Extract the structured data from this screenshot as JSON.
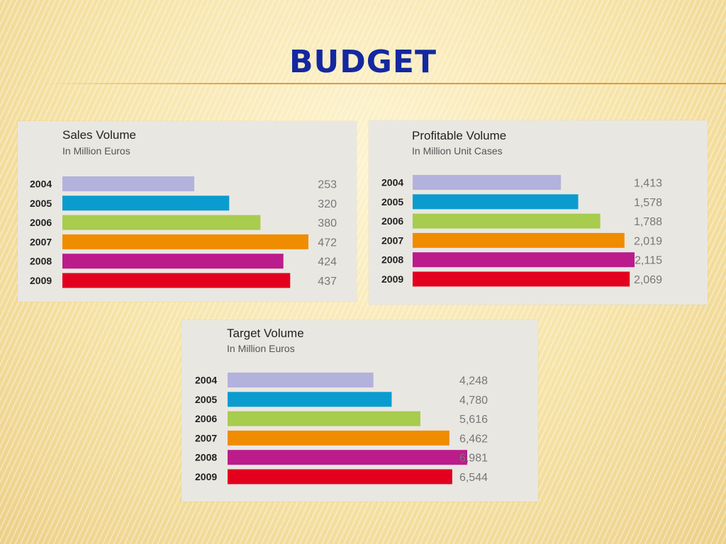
{
  "slide": {
    "title": "BUDGET"
  },
  "chart_data": [
    {
      "type": "bar",
      "orientation": "horizontal",
      "title": "Sales Volume",
      "subtitle": "In Million Euros",
      "categories": [
        "2004",
        "2005",
        "2006",
        "2007",
        "2008",
        "2009"
      ],
      "values": [
        253,
        320,
        380,
        472,
        424,
        437
      ],
      "value_labels": [
        "253",
        "320",
        "380",
        "472",
        "424",
        "437"
      ],
      "colors": [
        "#b3b2dc",
        "#0a9ccf",
        "#a8cc4e",
        "#f08c00",
        "#bc1b8c",
        "#e3001f"
      ],
      "xlim": [
        0,
        472
      ]
    },
    {
      "type": "bar",
      "orientation": "horizontal",
      "title": "Profitable Volume",
      "subtitle": "In Million Unit Cases",
      "categories": [
        "2004",
        "2005",
        "2006",
        "2007",
        "2008",
        "2009"
      ],
      "values": [
        1413,
        1578,
        1788,
        2019,
        2115,
        2069
      ],
      "value_labels": [
        "1,413",
        "1,578",
        "1,788",
        "2,019",
        "2,115",
        "2,069"
      ],
      "colors": [
        "#b3b2dc",
        "#0a9ccf",
        "#a8cc4e",
        "#f08c00",
        "#bc1b8c",
        "#e3001f"
      ],
      "xlim": [
        0,
        2115
      ]
    },
    {
      "type": "bar",
      "orientation": "horizontal",
      "title": "Target Volume",
      "subtitle": "In Million Euros",
      "categories": [
        "2004",
        "2005",
        "2006",
        "2007",
        "2008",
        "2009"
      ],
      "values": [
        4248,
        4780,
        5616,
        6462,
        6981,
        6544
      ],
      "value_labels": [
        "4,248",
        "4,780",
        "5,616",
        "6,462",
        "6,981",
        "6,544"
      ],
      "colors": [
        "#b3b2dc",
        "#0a9ccf",
        "#a8cc4e",
        "#f08c00",
        "#bc1b8c",
        "#e3001f"
      ],
      "xlim": [
        0,
        6981
      ]
    }
  ]
}
